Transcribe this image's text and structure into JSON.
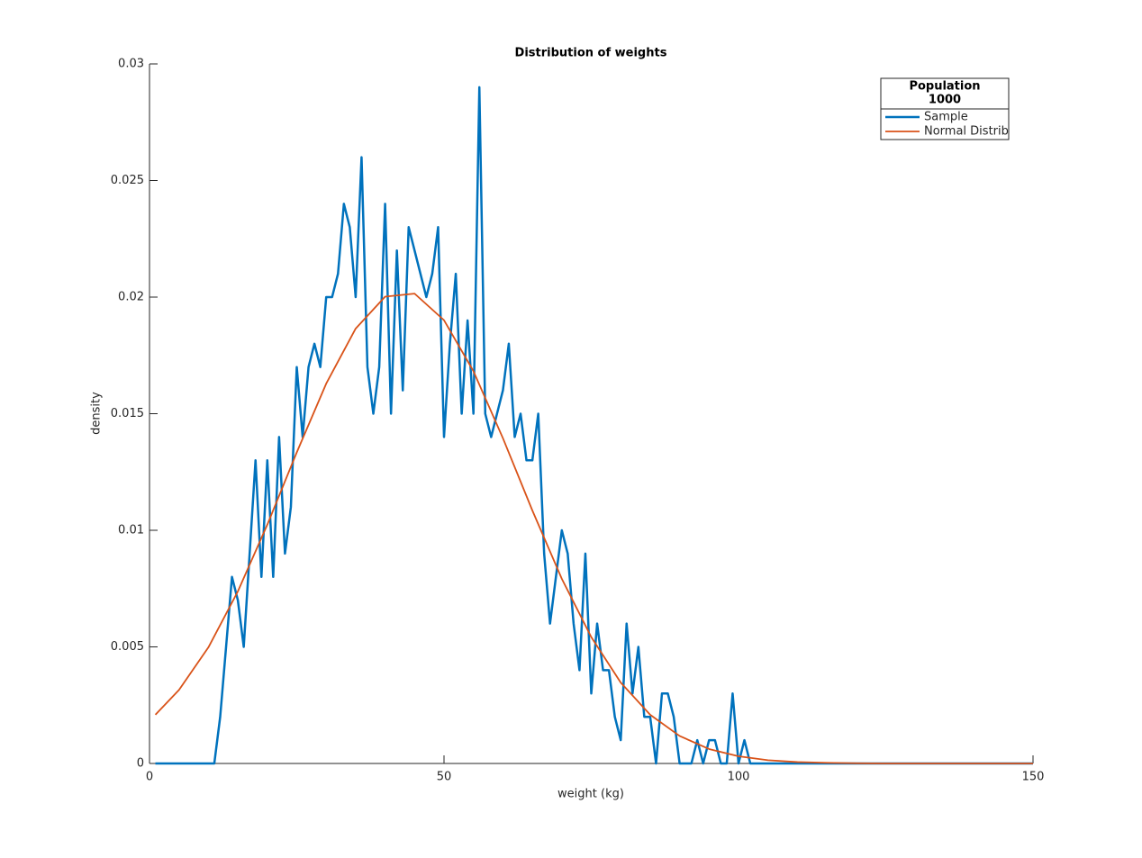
{
  "chart_data": {
    "type": "line",
    "title": "Distribution of weights",
    "xlabel": "weight (kg)",
    "ylabel": "density",
    "xlim": [
      0,
      150
    ],
    "xticks": [
      0,
      50,
      100,
      150
    ],
    "ylim": [
      0,
      0.03
    ],
    "yticks": [
      0,
      0.005,
      0.01,
      0.015,
      0.02,
      0.025,
      0.03
    ],
    "grid": false,
    "legend_location": "northeast",
    "legend_title": [
      "Population",
      "1000"
    ],
    "series": [
      {
        "name": "Sample",
        "color": "#0072bd",
        "x": [
          1,
          2,
          3,
          4,
          5,
          6,
          7,
          8,
          9,
          10,
          11,
          12,
          13,
          14,
          15,
          16,
          17,
          18,
          19,
          20,
          21,
          22,
          23,
          24,
          25,
          26,
          27,
          28,
          29,
          30,
          31,
          32,
          33,
          34,
          35,
          36,
          37,
          38,
          39,
          40,
          41,
          42,
          43,
          44,
          45,
          46,
          47,
          48,
          49,
          50,
          51,
          52,
          53,
          54,
          55,
          56,
          57,
          58,
          59,
          60,
          61,
          62,
          63,
          64,
          65,
          66,
          67,
          68,
          69,
          70,
          71,
          72,
          73,
          74,
          75,
          76,
          77,
          78,
          79,
          80,
          81,
          82,
          83,
          84,
          85,
          86,
          87,
          88,
          89,
          90,
          91,
          92,
          93,
          94,
          95,
          96,
          97,
          98,
          99,
          100,
          101,
          102,
          103,
          104,
          105,
          106,
          107,
          108,
          109,
          110,
          111,
          112,
          113,
          114,
          115,
          116,
          117,
          118,
          119,
          120,
          121,
          122,
          123,
          124,
          125,
          126,
          127,
          128,
          129,
          130,
          131,
          132,
          133,
          134,
          135,
          136,
          137,
          138,
          139,
          140,
          141,
          142,
          143,
          144,
          145,
          146,
          147,
          148,
          149,
          150
        ],
        "values": [
          0,
          0,
          0,
          0,
          0,
          0,
          0,
          0,
          0,
          0,
          0,
          0.002,
          0.005,
          0.008,
          0.007,
          0.005,
          0.009,
          0.013,
          0.008,
          0.013,
          0.008,
          0.014,
          0.009,
          0.011,
          0.017,
          0.014,
          0.017,
          0.018,
          0.017,
          0.02,
          0.02,
          0.021,
          0.024,
          0.023,
          0.02,
          0.026,
          0.017,
          0.015,
          0.017,
          0.024,
          0.015,
          0.022,
          0.016,
          0.023,
          0.022,
          0.021,
          0.02,
          0.021,
          0.023,
          0.014,
          0.018,
          0.021,
          0.015,
          0.019,
          0.015,
          0.029,
          0.015,
          0.014,
          0.015,
          0.016,
          0.018,
          0.014,
          0.015,
          0.013,
          0.013,
          0.015,
          0.009,
          0.006,
          0.008,
          0.01,
          0.009,
          0.006,
          0.004,
          0.009,
          0.003,
          0.006,
          0.004,
          0.004,
          0.002,
          0.001,
          0.006,
          0.003,
          0.005,
          0.002,
          0.002,
          0,
          0.003,
          0.003,
          0.002,
          0,
          0,
          0,
          0.001,
          0,
          0.001,
          0.001,
          0,
          0,
          0.003,
          0,
          0.001,
          0,
          0,
          0,
          0,
          0,
          0,
          0,
          0,
          0,
          0,
          0,
          0,
          0,
          0,
          0,
          0,
          0,
          0,
          0,
          0,
          0,
          0,
          0,
          0,
          0,
          0,
          0,
          0,
          0,
          0,
          0,
          0,
          0,
          0,
          0,
          0,
          0,
          0,
          0,
          0,
          0,
          0,
          0,
          0,
          0,
          0,
          0,
          0,
          0
        ]
      },
      {
        "name": "Normal Distrib",
        "color": "#d95319",
        "x": [
          1,
          5,
          10,
          15,
          20,
          25,
          30,
          35,
          40,
          45,
          50,
          55,
          60,
          65,
          70,
          75,
          80,
          85,
          90,
          95,
          100,
          105,
          110,
          115,
          120,
          125,
          130,
          135,
          140,
          145,
          150
        ],
        "values": [
          0.00209,
          0.00315,
          0.00498,
          0.00738,
          0.01024,
          0.01334,
          0.01629,
          0.01865,
          0.02002,
          0.02015,
          0.01901,
          0.01682,
          0.01395,
          0.01085,
          0.00792,
          0.00542,
          0.00347,
          0.00209,
          0.00118,
          0.00062,
          0.00031,
          0.00014,
          6e-05,
          3e-05,
          1e-05,
          0,
          0,
          0,
          0,
          0,
          0
        ]
      }
    ]
  }
}
